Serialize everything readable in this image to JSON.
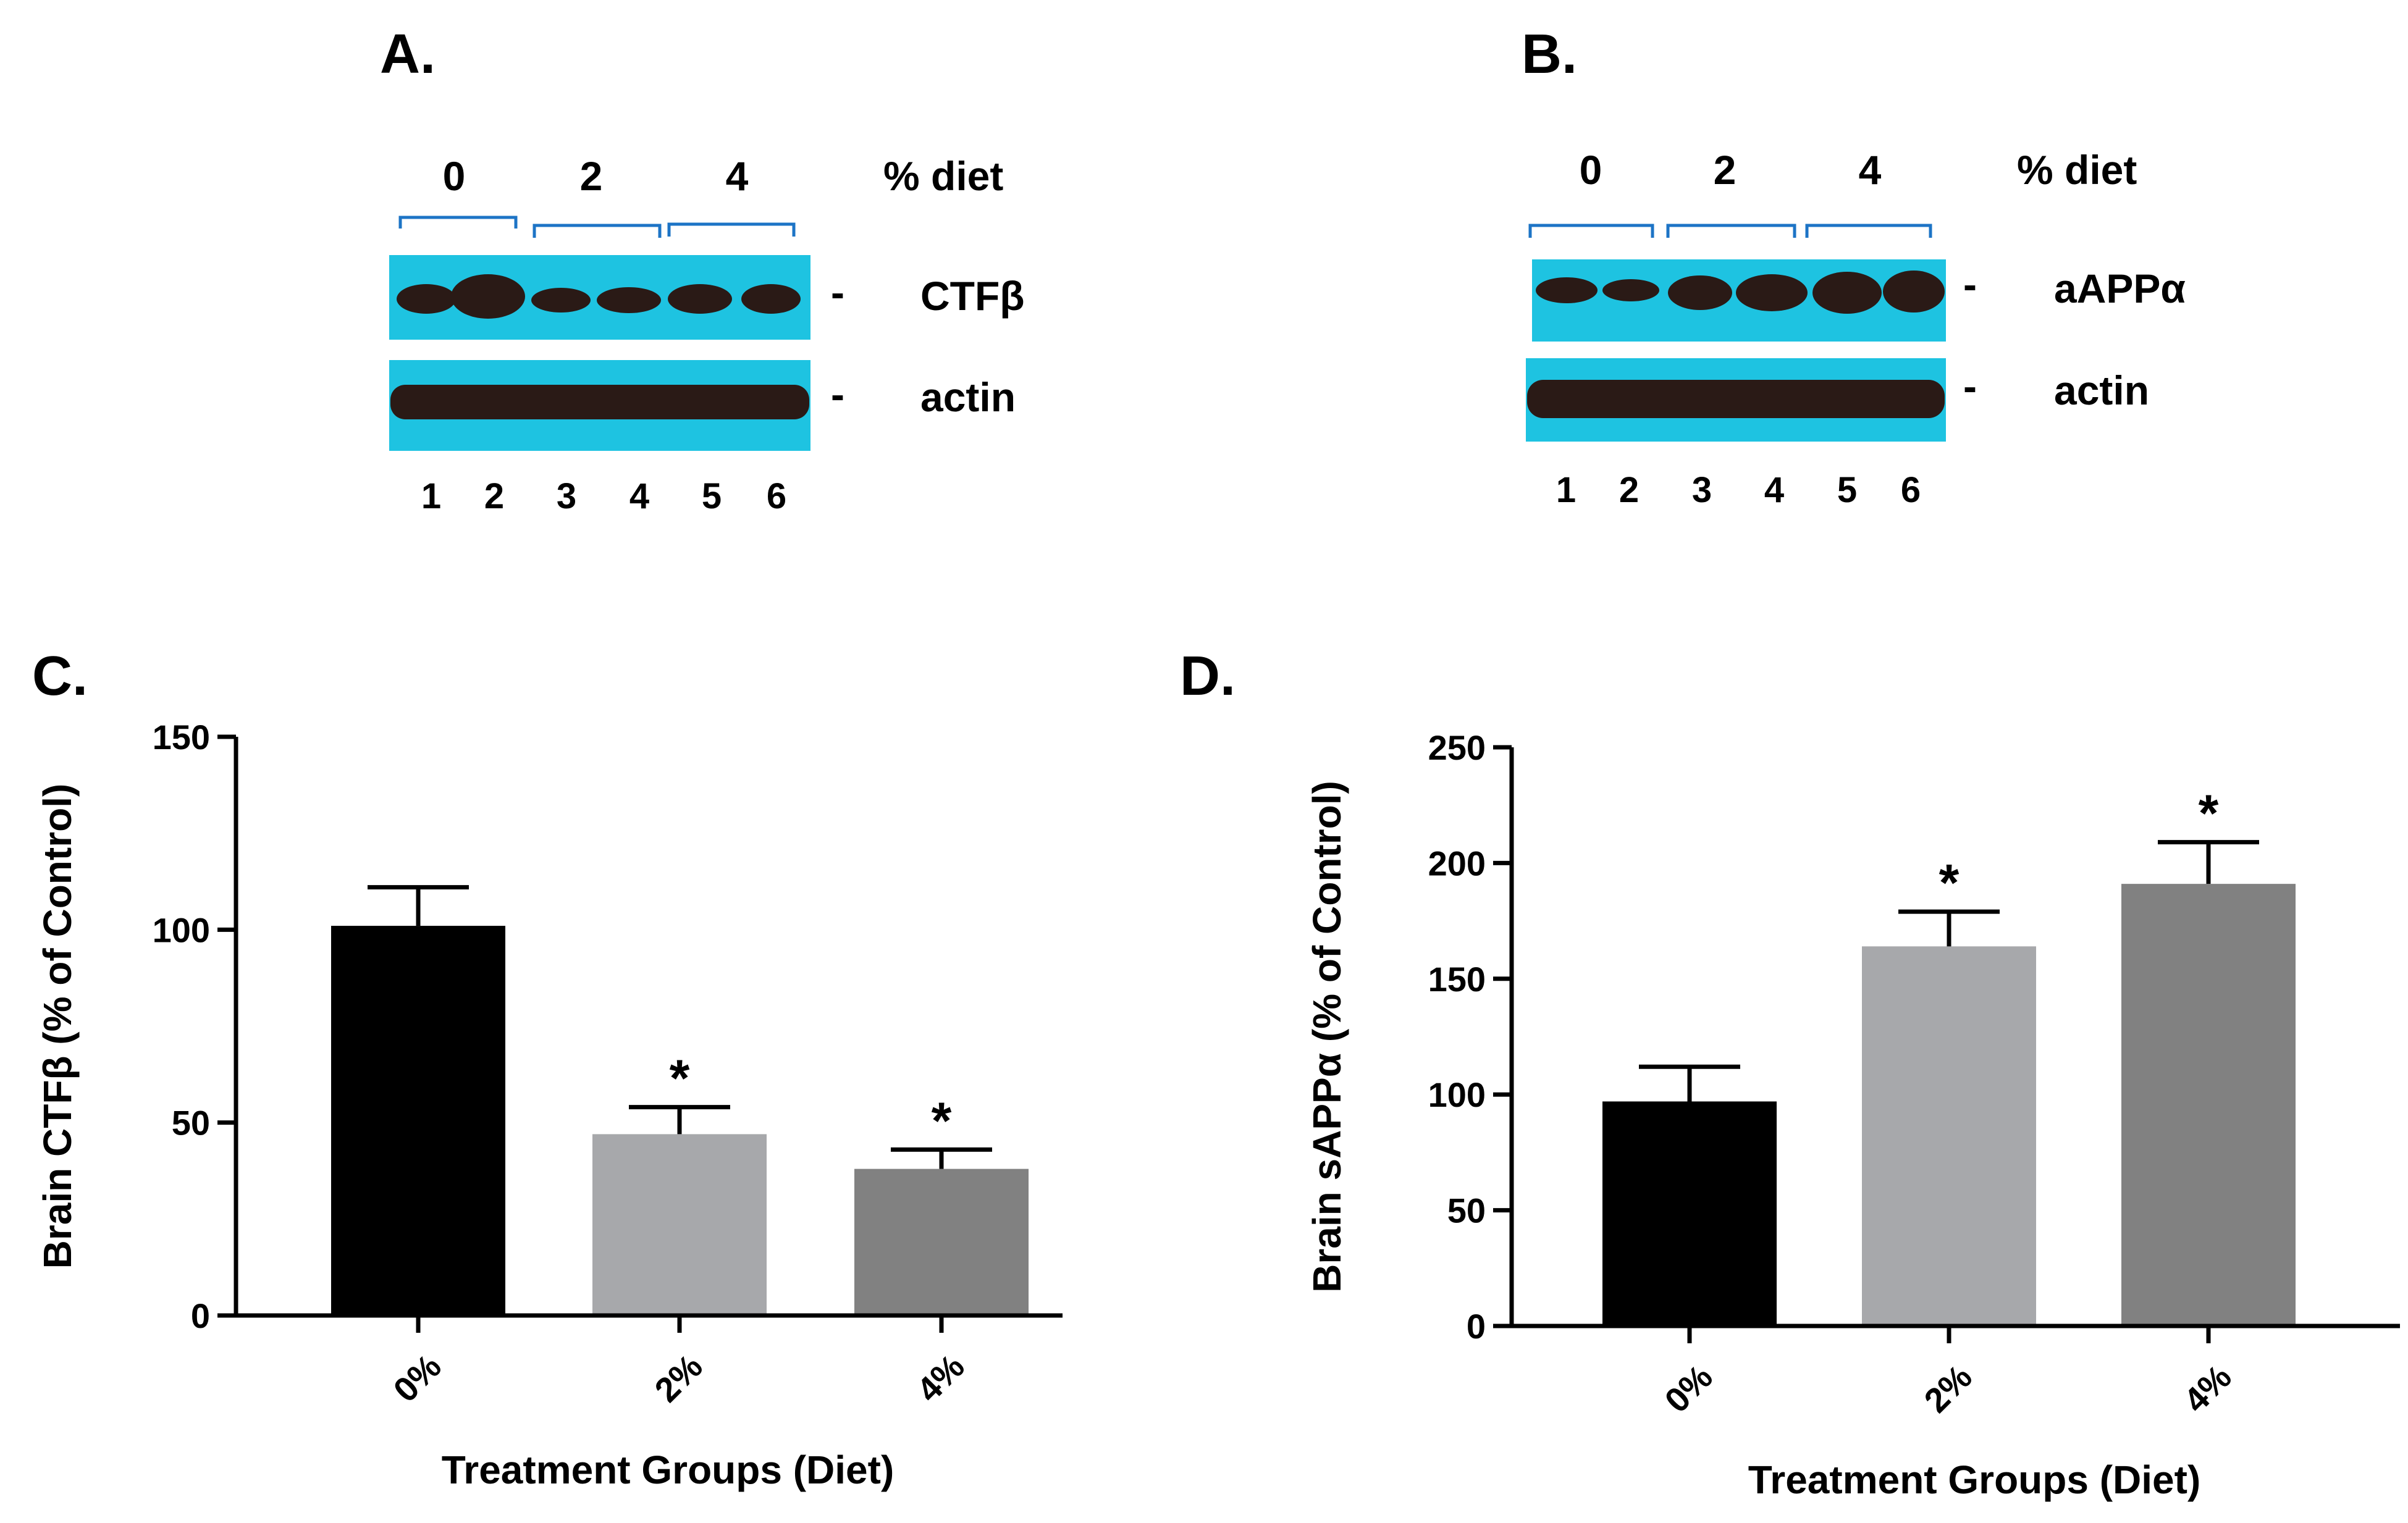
{
  "panels": {
    "A": {
      "letter": "A.",
      "groups": [
        "0",
        "2",
        "4"
      ],
      "group_unit": "% diet",
      "rows": [
        "CTFβ",
        "actin"
      ],
      "row_dash": "-",
      "lanes": [
        "1",
        "2",
        "3",
        "4",
        "5",
        "6"
      ]
    },
    "B": {
      "letter": "B.",
      "groups": [
        "0",
        "2",
        "4"
      ],
      "group_unit": "% diet",
      "rows": [
        "aAPPα",
        "actin"
      ],
      "row_dash": "-",
      "lanes": [
        "1",
        "2",
        "3",
        "4",
        "5",
        "6"
      ]
    }
  },
  "colors": {
    "membrane": "#1ec3e1",
    "band": "#2a1a16",
    "bracket": "#1d74c6",
    "bar_0": "#000000",
    "bar_2": "#a7a8ab",
    "bar_4": "#818181"
  },
  "chart_data": [
    {
      "panel": "C",
      "letter": "C.",
      "type": "bar",
      "categories": [
        "0%",
        "2%",
        "4%"
      ],
      "values": [
        101,
        47,
        38
      ],
      "errors": [
        10,
        7,
        5
      ],
      "significance": [
        "",
        "*",
        "*"
      ],
      "ylabel": "Brain CTFβ (% of Control)",
      "xlabel": "Treatment Groups (Diet)",
      "ylim": [
        0,
        150
      ],
      "yticks": [
        0,
        50,
        100,
        150
      ],
      "grid": false
    },
    {
      "panel": "D",
      "letter": "D.",
      "type": "bar",
      "categories": [
        "0%",
        "2%",
        "4%"
      ],
      "values": [
        97,
        164,
        191
      ],
      "errors": [
        15,
        15,
        18
      ],
      "significance": [
        "",
        "*",
        "*"
      ],
      "ylabel": "Brain sAPPα (% of Control)",
      "xlabel": "Treatment Groups (Diet)",
      "ylim": [
        0,
        250
      ],
      "yticks": [
        0,
        50,
        100,
        150,
        200,
        250
      ],
      "grid": false
    }
  ]
}
